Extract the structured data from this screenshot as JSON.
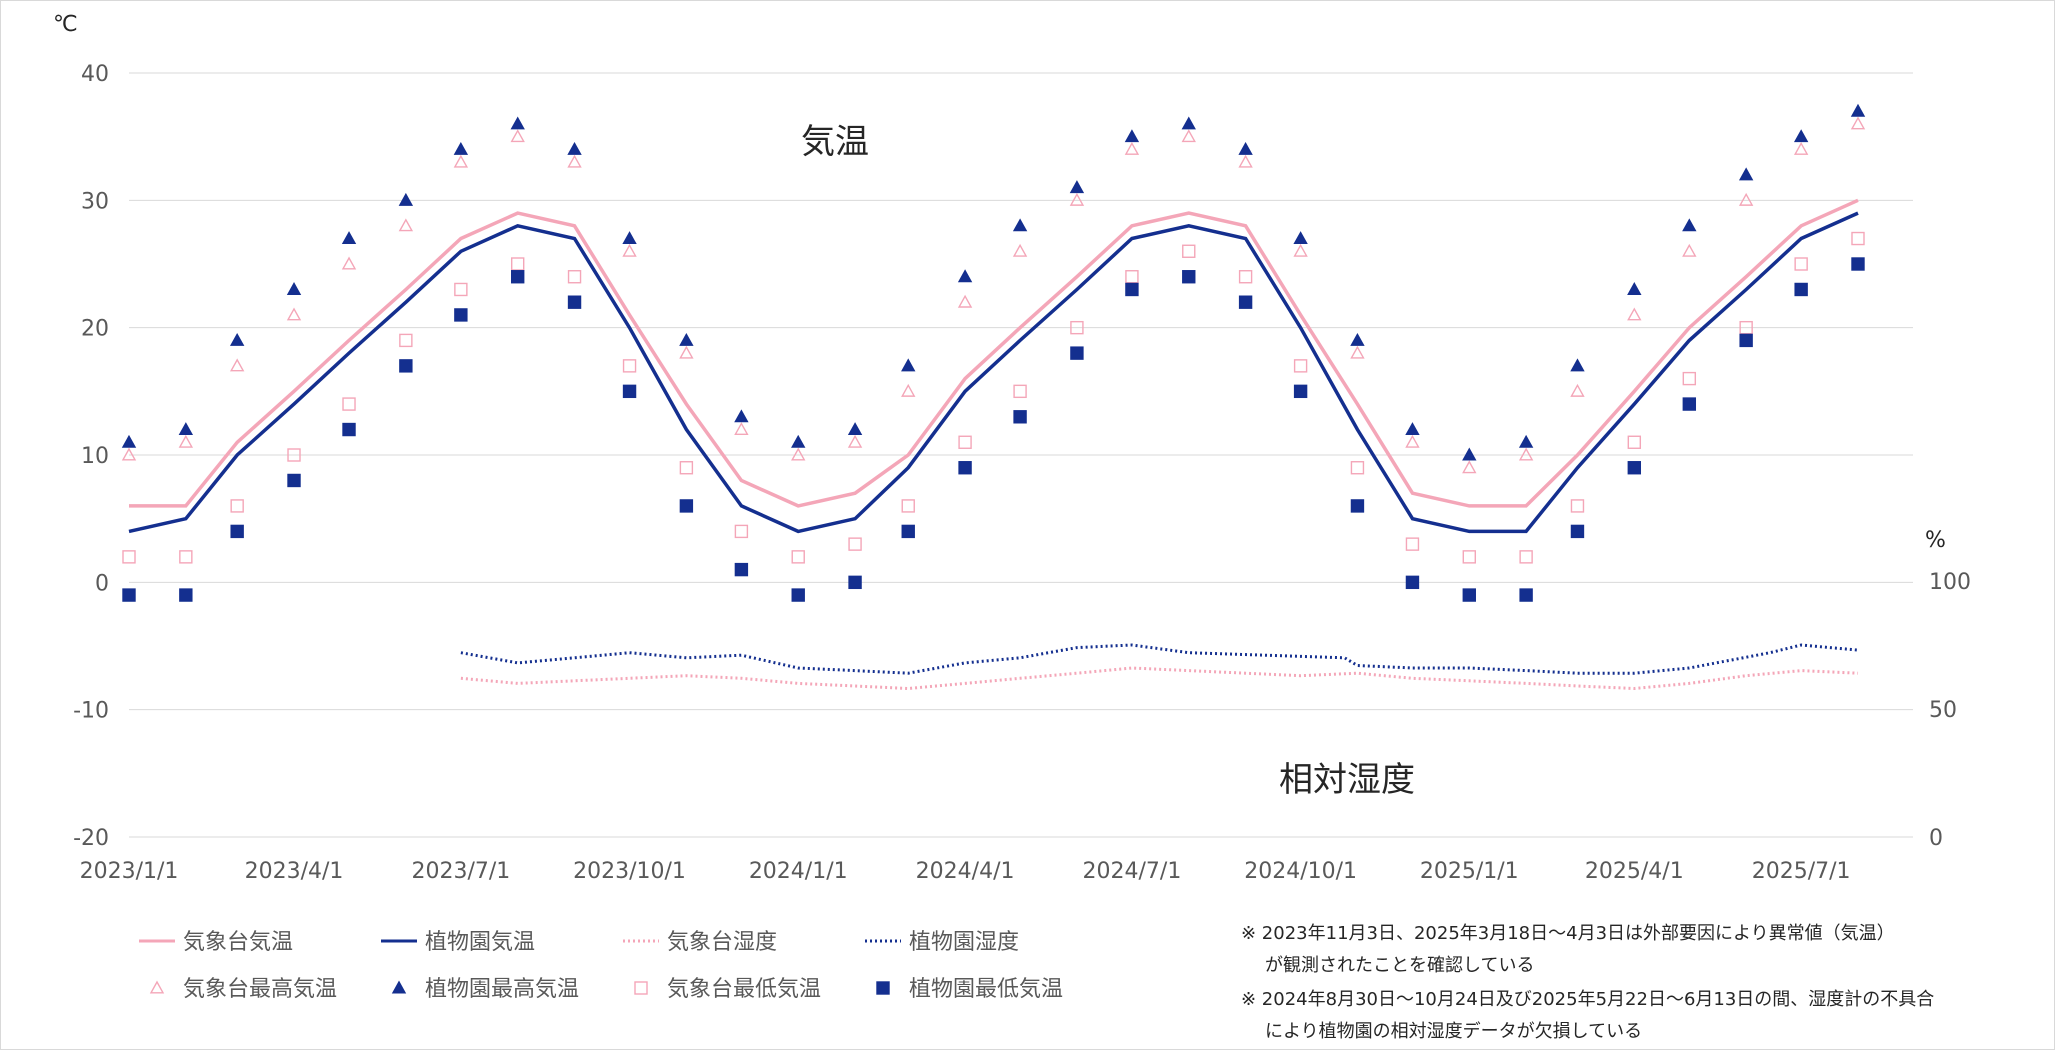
{
  "chart_data": {
    "type": "line",
    "title": "",
    "left_axis": {
      "unit": "℃",
      "ylim": [
        -20,
        40
      ],
      "ticks": [
        40,
        30,
        20,
        10,
        0,
        -10,
        -20
      ]
    },
    "right_axis": {
      "unit": "%",
      "ylim": [
        0,
        100
      ],
      "ticks": [
        100,
        50,
        0
      ]
    },
    "x_axis": {
      "start": "2023-01-01",
      "end": "2025-08-31",
      "tick_labels": [
        "2023/1/1",
        "2023/4/1",
        "2023/7/1",
        "2023/10/1",
        "2024/1/1",
        "2024/4/1",
        "2024/7/1",
        "2024/10/1",
        "2025/1/1",
        "2025/4/1",
        "2025/7/1"
      ]
    },
    "annotations": [
      "気温",
      "相対湿度"
    ],
    "grid": true,
    "legend": {
      "placement": "bottom-left",
      "entries": [
        "気象台気温",
        "植物園気温",
        "気象台湿度",
        "植物園湿度",
        "気象台最高気温",
        "植物園最高気温",
        "気象台最低気温",
        "植物園最低気温"
      ]
    },
    "notes": [
      "※ 2023年11月3日、2025年3月18日〜4月3日は外部要因により異常値（気温）",
      "が観測されたことを確認している",
      "※ 2024年8月30日〜10月24日及び2025年5月22日〜6月13日の間、湿度計の不具合",
      "により植物園の相対湿度データが欠損している"
    ],
    "colors": {
      "jma": "#f4a6b8",
      "garden": "#142f8f",
      "grid": "#d9d9d9"
    },
    "series": [
      {
        "name": "気象台気温",
        "axis": "left",
        "style": "line",
        "x": [
          "2023-01-01",
          "2023-02-01",
          "2023-03-01",
          "2023-04-01",
          "2023-05-01",
          "2023-06-01",
          "2023-07-01",
          "2023-08-01",
          "2023-09-01",
          "2023-10-01",
          "2023-11-01",
          "2023-12-01",
          "2024-01-01",
          "2024-02-01",
          "2024-03-01",
          "2024-04-01",
          "2024-05-01",
          "2024-06-01",
          "2024-07-01",
          "2024-08-01",
          "2024-09-01",
          "2024-10-01",
          "2024-11-01",
          "2024-12-01",
          "2025-01-01",
          "2025-02-01",
          "2025-03-01",
          "2025-04-01",
          "2025-05-01",
          "2025-06-01",
          "2025-07-01",
          "2025-08-01"
        ],
        "values": [
          6,
          6,
          11,
          15,
          19,
          23,
          27,
          29,
          28,
          21,
          14,
          8,
          6,
          7,
          10,
          16,
          20,
          24,
          28,
          29,
          28,
          21,
          14,
          7,
          6,
          6,
          10,
          15,
          20,
          24,
          28,
          30
        ]
      },
      {
        "name": "植物園気温",
        "axis": "left",
        "style": "line",
        "x": [
          "2023-01-01",
          "2023-02-01",
          "2023-03-01",
          "2023-04-01",
          "2023-05-01",
          "2023-06-01",
          "2023-07-01",
          "2023-08-01",
          "2023-09-01",
          "2023-10-01",
          "2023-11-01",
          "2023-12-01",
          "2024-01-01",
          "2024-02-01",
          "2024-03-01",
          "2024-04-01",
          "2024-05-01",
          "2024-06-01",
          "2024-07-01",
          "2024-08-01",
          "2024-09-01",
          "2024-10-01",
          "2024-11-01",
          "2024-12-01",
          "2025-01-01",
          "2025-02-01",
          "2025-03-01",
          "2025-04-01",
          "2025-05-01",
          "2025-06-01",
          "2025-07-01",
          "2025-08-01"
        ],
        "values": [
          4,
          5,
          10,
          14,
          18,
          22,
          26,
          28,
          27,
          20,
          12,
          6,
          4,
          5,
          9,
          15,
          19,
          23,
          27,
          28,
          27,
          20,
          12,
          5,
          4,
          4,
          9,
          14,
          19,
          23,
          27,
          29
        ]
      },
      {
        "name": "気象台湿度",
        "axis": "right",
        "style": "dotted",
        "x": [
          "2023-07-01",
          "2023-08-01",
          "2023-09-01",
          "2023-10-01",
          "2023-11-01",
          "2023-12-01",
          "2024-01-01",
          "2024-02-01",
          "2024-03-01",
          "2024-04-01",
          "2024-05-01",
          "2024-06-01",
          "2024-07-01",
          "2024-08-01",
          "2024-09-01",
          "2024-10-01",
          "2024-11-01",
          "2024-12-01",
          "2025-01-01",
          "2025-02-01",
          "2025-03-01",
          "2025-04-01",
          "2025-05-01",
          "2025-06-01",
          "2025-07-01",
          "2025-08-01"
        ],
        "values": [
          62,
          60,
          61,
          62,
          63,
          62,
          60,
          59,
          58,
          60,
          62,
          64,
          66,
          65,
          64,
          63,
          64,
          62,
          61,
          60,
          59,
          58,
          60,
          63,
          65,
          64
        ]
      },
      {
        "name": "植物園湿度",
        "axis": "right",
        "style": "dotted",
        "x": [
          "2023-07-01",
          "2023-08-01",
          "2023-09-01",
          "2023-10-01",
          "2023-11-01",
          "2023-12-01",
          "2024-01-01",
          "2024-02-01",
          "2024-03-01",
          "2024-04-01",
          "2024-05-01",
          "2024-06-01",
          "2024-07-01",
          "2024-08-01",
          "2024-10-25",
          "2024-11-01",
          "2024-12-01",
          "2025-01-01",
          "2025-02-01",
          "2025-03-01",
          "2025-04-01",
          "2025-05-01",
          "2025-06-14",
          "2025-07-01",
          "2025-08-01"
        ],
        "values": [
          72,
          68,
          70,
          72,
          70,
          71,
          66,
          65,
          64,
          68,
          70,
          74,
          75,
          72,
          70,
          67,
          66,
          66,
          65,
          64,
          64,
          66,
          72,
          75,
          73
        ]
      },
      {
        "name": "気象台最高気温",
        "axis": "left",
        "style": "open-triangle",
        "x": [
          "2023-01-01",
          "2023-02-01",
          "2023-03-01",
          "2023-04-01",
          "2023-05-01",
          "2023-06-01",
          "2023-07-01",
          "2023-08-01",
          "2023-09-01",
          "2023-10-01",
          "2023-11-01",
          "2023-12-01",
          "2024-01-01",
          "2024-02-01",
          "2024-03-01",
          "2024-04-01",
          "2024-05-01",
          "2024-06-01",
          "2024-07-01",
          "2024-08-01",
          "2024-09-01",
          "2024-10-01",
          "2024-11-01",
          "2024-12-01",
          "2025-01-01",
          "2025-02-01",
          "2025-03-01",
          "2025-04-01",
          "2025-05-01",
          "2025-06-01",
          "2025-07-01",
          "2025-08-01"
        ],
        "values": [
          10,
          11,
          17,
          21,
          25,
          28,
          33,
          35,
          33,
          26,
          18,
          12,
          10,
          11,
          15,
          22,
          26,
          30,
          34,
          35,
          33,
          26,
          18,
          11,
          9,
          10,
          15,
          21,
          26,
          30,
          34,
          36
        ]
      },
      {
        "name": "植物園最高気温",
        "axis": "left",
        "style": "filled-triangle",
        "x": [
          "2023-01-01",
          "2023-02-01",
          "2023-03-01",
          "2023-04-01",
          "2023-05-01",
          "2023-06-01",
          "2023-07-01",
          "2023-08-01",
          "2023-09-01",
          "2023-10-01",
          "2023-11-01",
          "2023-12-01",
          "2024-01-01",
          "2024-02-01",
          "2024-03-01",
          "2024-04-01",
          "2024-05-01",
          "2024-06-01",
          "2024-07-01",
          "2024-08-01",
          "2024-09-01",
          "2024-10-01",
          "2024-11-01",
          "2024-12-01",
          "2025-01-01",
          "2025-02-01",
          "2025-03-01",
          "2025-04-01",
          "2025-05-01",
          "2025-06-01",
          "2025-07-01",
          "2025-08-01"
        ],
        "values": [
          11,
          12,
          19,
          23,
          27,
          30,
          34,
          36,
          34,
          27,
          19,
          13,
          11,
          12,
          17,
          24,
          28,
          31,
          35,
          36,
          34,
          27,
          19,
          12,
          10,
          11,
          17,
          23,
          28,
          32,
          35,
          37
        ]
      },
      {
        "name": "気象台最低気温",
        "axis": "left",
        "style": "open-square",
        "x": [
          "2023-01-01",
          "2023-02-01",
          "2023-03-01",
          "2023-04-01",
          "2023-05-01",
          "2023-06-01",
          "2023-07-01",
          "2023-08-01",
          "2023-09-01",
          "2023-10-01",
          "2023-11-01",
          "2023-12-01",
          "2024-01-01",
          "2024-02-01",
          "2024-03-01",
          "2024-04-01",
          "2024-05-01",
          "2024-06-01",
          "2024-07-01",
          "2024-08-01",
          "2024-09-01",
          "2024-10-01",
          "2024-11-01",
          "2024-12-01",
          "2025-01-01",
          "2025-02-01",
          "2025-03-01",
          "2025-04-01",
          "2025-05-01",
          "2025-06-01",
          "2025-07-01",
          "2025-08-01"
        ],
        "values": [
          2,
          2,
          6,
          10,
          14,
          19,
          23,
          25,
          24,
          17,
          9,
          4,
          2,
          3,
          6,
          11,
          15,
          20,
          24,
          26,
          24,
          17,
          9,
          3,
          2,
          2,
          6,
          11,
          16,
          20,
          25,
          27
        ]
      },
      {
        "name": "植物園最低気温",
        "axis": "left",
        "style": "filled-square",
        "x": [
          "2023-01-01",
          "2023-02-01",
          "2023-03-01",
          "2023-04-01",
          "2023-05-01",
          "2023-06-01",
          "2023-07-01",
          "2023-08-01",
          "2023-09-01",
          "2023-10-01",
          "2023-11-01",
          "2023-12-01",
          "2024-01-01",
          "2024-02-01",
          "2024-03-01",
          "2024-04-01",
          "2024-05-01",
          "2024-06-01",
          "2024-07-01",
          "2024-08-01",
          "2024-09-01",
          "2024-10-01",
          "2024-11-01",
          "2024-12-01",
          "2025-01-01",
          "2025-02-01",
          "2025-03-01",
          "2025-04-01",
          "2025-05-01",
          "2025-06-01",
          "2025-07-01",
          "2025-08-01"
        ],
        "values": [
          -1,
          -1,
          4,
          8,
          12,
          17,
          21,
          24,
          22,
          15,
          6,
          1,
          -1,
          0,
          4,
          9,
          13,
          18,
          23,
          24,
          22,
          15,
          6,
          0,
          -1,
          -1,
          4,
          9,
          14,
          19,
          23,
          25
        ]
      }
    ]
  }
}
